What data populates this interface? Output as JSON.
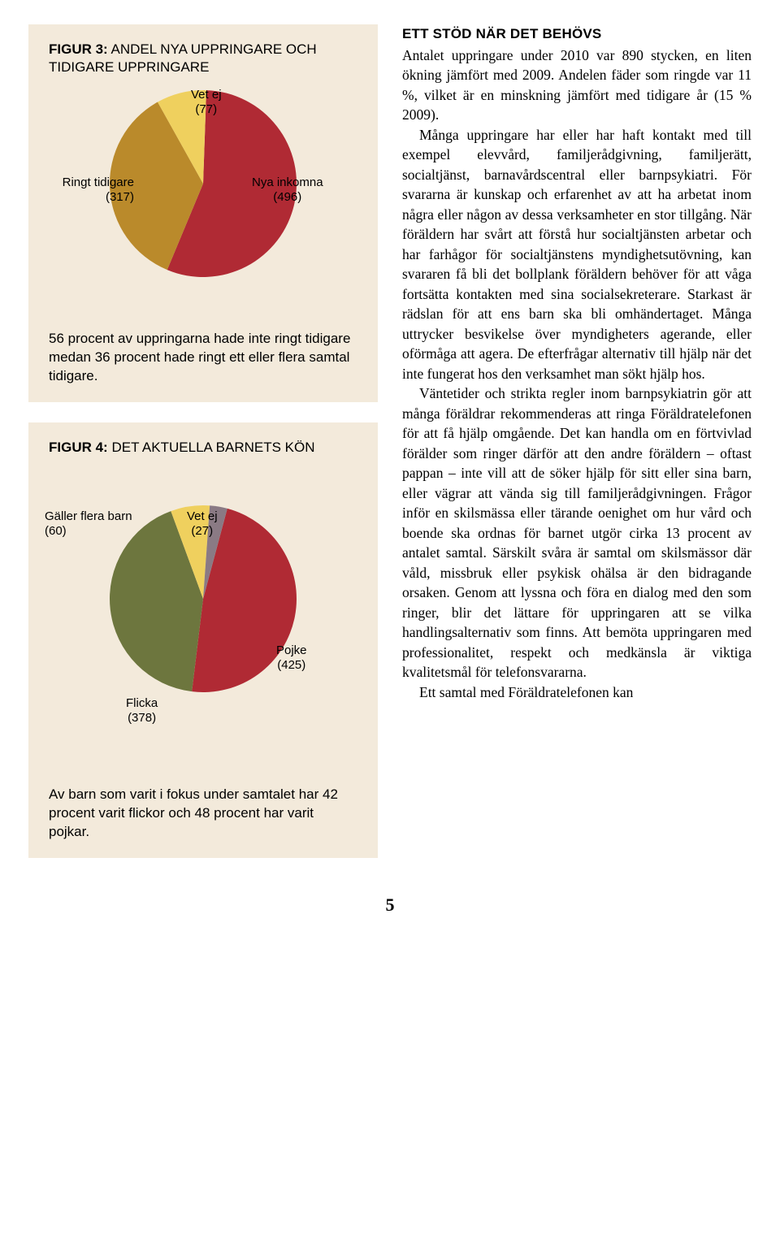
{
  "figure3": {
    "title_bold": "FIGUR 3:",
    "title_light": " ANDEL NYA UPPRINGARE OCH TIDIGARE UPPRINGARE",
    "type": "pie",
    "background_color": "#f3eadb",
    "slices": [
      {
        "label": "Nya inkomna",
        "count": "(496)",
        "value": 496,
        "color": "#b02a34"
      },
      {
        "label": "Ringt tidigare",
        "count": "(317)",
        "value": 317,
        "color": "#ba8a2b"
      },
      {
        "label": "Vet ej",
        "count": "(77)",
        "value": 77,
        "color": "#efd05e"
      }
    ],
    "labels": {
      "vetej": "Vet ej",
      "vetej_n": "(77)",
      "ringt": "Ringt tidigare",
      "ringt_n": "(317)",
      "nya": "Nya inkomna",
      "nya_n": "(496)"
    },
    "caption": "56 procent av uppringarna hade inte ringt tidigare medan 36 procent hade ringt ett eller flera samtal tidigare."
  },
  "figure4": {
    "title_bold": "FIGUR 4:",
    "title_light": " DET AKTUELLA BARNETS KÖN",
    "type": "pie",
    "background_color": "#f3eadb",
    "slices": [
      {
        "label": "Pojke",
        "count": "(425)",
        "value": 425,
        "color": "#b02a34"
      },
      {
        "label": "Flicka",
        "count": "(378)",
        "value": 378,
        "color": "#6d763e"
      },
      {
        "label": "Gäller flera barn",
        "count": "(60)",
        "value": 60,
        "color": "#efd05e"
      },
      {
        "label": "Vet ej",
        "count": "(27)",
        "value": 27,
        "color": "#8a7a84"
      }
    ],
    "labels": {
      "galler": "Gäller flera barn",
      "galler_n": "(60)",
      "vetej": "Vet ej",
      "vetej_n": "(27)",
      "flicka": "Flicka",
      "flicka_n": "(378)",
      "pojke": "Pojke",
      "pojke_n": "(425)"
    },
    "caption": "Av barn som varit i fokus under samtalet har 42 procent varit flickor och 48 procent har varit pojkar."
  },
  "body": {
    "heading": "ETT STÖD NÄR DET BEHÖVS",
    "p1": "Antalet uppringare under 2010 var 890 stycken, en liten ökning jämfört med 2009. Andelen fäder som ringde var 11 %, vilket är en minskning jämfört med tidigare år (15 % 2009).",
    "p2": "Många uppringare har eller har haft kontakt med till exempel elevvård, familjerådgivning, familjerätt, socialtjänst, barnavårdscentral eller barnpsykiatri. För svararna är kunskap och erfarenhet av att ha arbetat inom några eller någon av dessa verksamheter en stor tillgång. När föräldern har svårt att förstå hur socialtjänsten arbetar och har farhågor för socialtjänstens myndighetsutövning, kan svararen få bli det bollplank föräldern behöver för att våga fortsätta kontakten med sina socialsekreterare. Starkast är rädslan för att ens barn ska bli omhändertaget. Många uttrycker besvikelse över myndigheters agerande, eller oförmåga att agera. De efterfrågar alternativ till hjälp när det inte fungerat hos den verksamhet man sökt hjälp hos.",
    "p3": "Väntetider och strikta regler inom barnpsykiatrin gör att många föräldrar rekommenderas att ringa Föräldratelefonen för att få hjälp omgående. Det kan handla om en förtvivlad förälder som ringer därför att den andre föräldern – oftast pappan – inte vill att de söker hjälp för sitt eller sina barn, eller vägrar att vända sig till familjerådgivningen. Frågor inför en skilsmässa eller tärande oenighet om hur vård och boende ska ordnas för barnet utgör cirka 13 procent av antalet samtal. Särskilt svåra är samtal om skilsmässor där våld, missbruk eller psykisk ohälsa är den bidragande orsaken. Genom att lyssna och föra en dialog med den som ringer, blir det lättare för uppringaren att se vilka handlingsalternativ som finns. Att bemöta uppringaren med professionalitet, respekt och medkänsla är viktiga kvalitetsmål för telefonsvararna.",
    "p4": "Ett samtal med Föräldratelefonen kan"
  },
  "page_number": "5"
}
